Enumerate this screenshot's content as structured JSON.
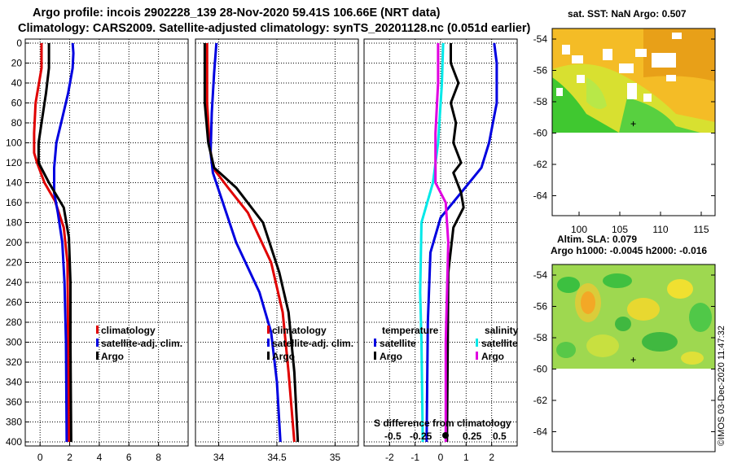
{
  "header": {
    "line1": "Argo profile: incois 2902228_139 28-Nov-2020 59.41S 106.66E (NRT data)",
    "line2": "Climatology: CARS2009. Satellite-adjusted climatology: synTS_20201128.nc (0.051d earlier)"
  },
  "colors": {
    "climatology": "#e00000",
    "satellite": "#0000e0",
    "argo": "#000000",
    "sat_salinity": "#00e8e8",
    "argo_salinity": "#e000e0"
  },
  "chart_data": [
    {
      "type": "line",
      "id": "temperature_profile",
      "xlim": [
        -1,
        10
      ],
      "ylim": [
        0,
        400
      ],
      "x_ticks": [
        "0",
        "2",
        "4",
        "6",
        "8"
      ],
      "y_ticks": [
        "0",
        "20",
        "40",
        "60",
        "80",
        "100",
        "120",
        "140",
        "160",
        "180",
        "200",
        "220",
        "240",
        "260",
        "280",
        "300",
        "320",
        "340",
        "360",
        "380",
        "400"
      ],
      "legend_position": "bottom-right",
      "series": [
        {
          "name": "climatology",
          "color": "#e00000",
          "points": [
            [
              0.1,
              0
            ],
            [
              0.1,
              25
            ],
            [
              -0.3,
              60
            ],
            [
              -0.4,
              90
            ],
            [
              -0.4,
              110
            ],
            [
              -0.2,
              120
            ],
            [
              0.3,
              140
            ],
            [
              1.0,
              158
            ],
            [
              1.6,
              185
            ],
            [
              1.85,
              220
            ],
            [
              1.9,
              300
            ],
            [
              1.95,
              400
            ]
          ]
        },
        {
          "name": "satellite-adj. clim.",
          "color": "#0000e0",
          "points": [
            [
              2.2,
              0
            ],
            [
              2.25,
              10
            ],
            [
              2.2,
              25
            ],
            [
              1.9,
              50
            ],
            [
              1.5,
              75
            ],
            [
              1.1,
              100
            ],
            [
              0.95,
              125
            ],
            [
              0.95,
              150
            ],
            [
              1.2,
              170
            ],
            [
              1.5,
              200
            ],
            [
              1.65,
              240
            ],
            [
              1.75,
              300
            ],
            [
              1.8,
              400
            ]
          ]
        },
        {
          "name": "Argo",
          "color": "#000000",
          "points": [
            [
              0.6,
              0
            ],
            [
              0.6,
              25
            ],
            [
              0.4,
              50
            ],
            [
              0.1,
              80
            ],
            [
              -0.1,
              100
            ],
            [
              -0.1,
              120
            ],
            [
              0.6,
              140
            ],
            [
              1.6,
              165
            ],
            [
              1.95,
              195
            ],
            [
              2.05,
              240
            ],
            [
              2.05,
              300
            ],
            [
              2.1,
              400
            ]
          ]
        }
      ]
    },
    {
      "type": "line",
      "id": "salinity_profile",
      "xlim": [
        33.8,
        35.2
      ],
      "ylim": [
        0,
        400
      ],
      "x_ticks": [
        "34",
        "34.5",
        "35"
      ],
      "legend_position": "bottom-right",
      "series": [
        {
          "name": "climatology",
          "color": "#e00000",
          "points": [
            [
              33.9,
              0
            ],
            [
              33.9,
              60
            ],
            [
              33.92,
              100
            ],
            [
              33.95,
              125
            ],
            [
              34.08,
              145
            ],
            [
              34.25,
              170
            ],
            [
              34.45,
              220
            ],
            [
              34.55,
              270
            ],
            [
              34.6,
              330
            ],
            [
              34.65,
              400
            ]
          ]
        },
        {
          "name": "satellite-adj. clim.",
          "color": "#0000e0",
          "points": [
            [
              33.98,
              0
            ],
            [
              33.96,
              30
            ],
            [
              33.94,
              70
            ],
            [
              33.93,
              110
            ],
            [
              33.95,
              130
            ],
            [
              34.05,
              165
            ],
            [
              34.15,
              200
            ],
            [
              34.35,
              250
            ],
            [
              34.45,
              290
            ],
            [
              34.5,
              340
            ],
            [
              34.53,
              400
            ]
          ]
        },
        {
          "name": "Argo",
          "color": "#000000",
          "points": [
            [
              33.88,
              0
            ],
            [
              33.88,
              60
            ],
            [
              33.91,
              100
            ],
            [
              33.96,
              125
            ],
            [
              34.15,
              145
            ],
            [
              34.38,
              180
            ],
            [
              34.52,
              230
            ],
            [
              34.6,
              270
            ],
            [
              34.65,
              330
            ],
            [
              34.68,
              400
            ]
          ]
        }
      ]
    },
    {
      "type": "line",
      "id": "difference_from_climatology",
      "xlim": [
        -3,
        3
      ],
      "ylim": [
        0,
        400
      ],
      "x_ticks": [
        "-2",
        "-1",
        "0",
        "1",
        "2"
      ],
      "sdiff_ticks": [
        "-0.5",
        "-0.25",
        "0.25",
        "0.5"
      ],
      "legend_position": "bottom",
      "series": [
        {
          "name": "temperature satellite",
          "color": "#0000e0",
          "points": [
            [
              2.1,
              0
            ],
            [
              2.2,
              20
            ],
            [
              2.2,
              60
            ],
            [
              1.9,
              100
            ],
            [
              1.6,
              125
            ],
            [
              0.8,
              150
            ],
            [
              0.0,
              175
            ],
            [
              -0.4,
              210
            ],
            [
              -0.5,
              280
            ],
            [
              -0.55,
              400
            ]
          ]
        },
        {
          "name": "temperature Argo",
          "color": "#000000",
          "points": [
            [
              0.4,
              0
            ],
            [
              0.4,
              20
            ],
            [
              0.7,
              40
            ],
            [
              0.4,
              60
            ],
            [
              0.6,
              80
            ],
            [
              0.5,
              100
            ],
            [
              0.8,
              120
            ],
            [
              0.5,
              130
            ],
            [
              0.8,
              150
            ],
            [
              0.9,
              165
            ],
            [
              0.5,
              185
            ],
            [
              0.3,
              230
            ],
            [
              0.25,
              400
            ]
          ]
        },
        {
          "name": "salinity satellite",
          "color": "#00e8e8",
          "points": [
            [
              0.1,
              0
            ],
            [
              0.05,
              40
            ],
            [
              -0.1,
              100
            ],
            [
              -0.3,
              140
            ],
            [
              -0.75,
              180
            ],
            [
              -0.8,
              250
            ],
            [
              -0.75,
              300
            ],
            [
              -0.7,
              400
            ]
          ]
        },
        {
          "name": "salinity Argo",
          "color": "#e000e0",
          "points": [
            [
              -0.1,
              0
            ],
            [
              -0.1,
              40
            ],
            [
              -0.2,
              90
            ],
            [
              -0.2,
              125
            ],
            [
              -0.2,
              140
            ],
            [
              0.2,
              160
            ],
            [
              0.3,
              200
            ],
            [
              0.2,
              300
            ],
            [
              0.2,
              400
            ]
          ]
        }
      ]
    }
  ],
  "panel1_legend": {
    "climatology": "climatology",
    "satellite": "satellite-adj. clim.",
    "argo": "Argo"
  },
  "panel2_legend": {
    "climatology": "climatology",
    "satellite": "satellite-adj. clim.",
    "argo": "Argo"
  },
  "panel3_legend": {
    "temp_title": "temperature",
    "temp_sat": "satellite",
    "temp_argo": "Argo",
    "sal_title": "salinity",
    "sal_sat": "satellite",
    "sal_argo": "Argo",
    "sdiff_label": "S difference from climatology"
  },
  "maps": {
    "sst_title": "sat. SST: NaN Argo: 0.507",
    "sla_title1": "Altim. SLA: 0.079",
    "sla_title2": "Argo h1000: -0.0045 h2000: -0.016",
    "lat_ticks": [
      "-54",
      "-56",
      "-58",
      "-60",
      "-62",
      "-64"
    ],
    "lon_ticks": [
      "100",
      "105",
      "110",
      "115"
    ],
    "lat_range": [
      -65.5,
      -53.5
    ],
    "lon_range": [
      96.7,
      116.7
    ],
    "argo_position": {
      "lon": 106.66,
      "lat": -59.41
    }
  },
  "credit": "©IMOS 03-Dec-2020 11:47:32"
}
